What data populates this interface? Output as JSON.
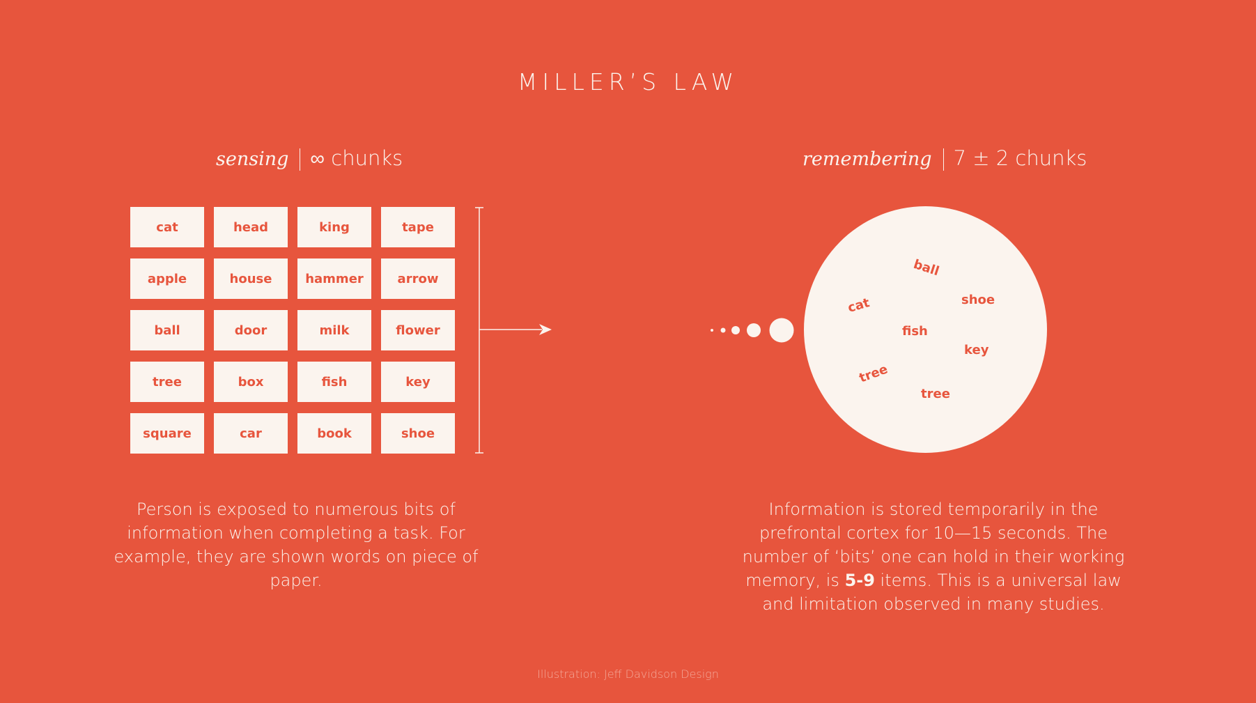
{
  "title": "MILLER’S LAW",
  "sensing": {
    "label": "sensing",
    "count": "∞ chunks",
    "words": [
      [
        "cat",
        "head",
        "king",
        "tape"
      ],
      [
        "apple",
        "house",
        "hammer",
        "arrow"
      ],
      [
        "ball",
        "door",
        "milk",
        "flower"
      ],
      [
        "tree",
        "box",
        "fish",
        "key"
      ],
      [
        "square",
        "car",
        "book",
        "shoe"
      ]
    ],
    "description": "Person is exposed to numerous bits of information when completing a task. For example, they are shown words on piece of paper."
  },
  "remembering": {
    "label": "remembering",
    "count": "7 ± 2 chunks",
    "words": [
      "ball",
      "shoe",
      "cat",
      "fish",
      "key",
      "tree",
      "tree"
    ],
    "description_before": "Information is stored temporarily in the prefrontal cortex for 10—15 seconds. The number of ‘bits’ one can hold in their working memory, is ",
    "description_bold": "5-9",
    "description_after": " items. This is a universal law and limitation observed in many studies."
  },
  "credit": "Illustration: Jeff Davidson Design",
  "colors": {
    "background": "#E7553D",
    "card": "#FBF4EE",
    "accent": "#E7553D"
  }
}
